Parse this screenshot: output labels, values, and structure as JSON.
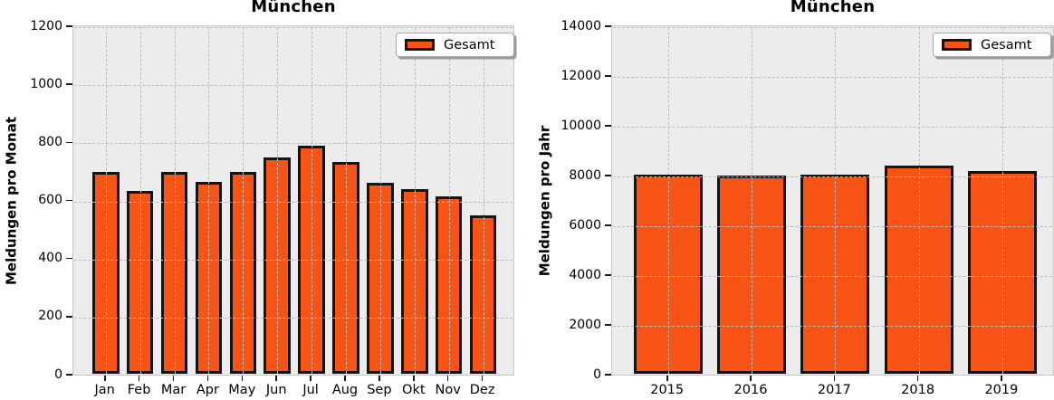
{
  "chart_data": [
    {
      "type": "bar",
      "title": "München",
      "ylabel": "Meldungen pro Monat",
      "legend_label": "Gesamt",
      "legend_position": "upper right",
      "grid": true,
      "categories": [
        "Jan",
        "Feb",
        "Mar",
        "Apr",
        "May",
        "Jun",
        "Jul",
        "Aug",
        "Sep",
        "Okt",
        "Nov",
        "Dez"
      ],
      "values": [
        695,
        630,
        695,
        660,
        695,
        745,
        787,
        730,
        658,
        636,
        610,
        545
      ],
      "ylim": [
        0,
        1200
      ],
      "ytick_step": 200
    },
    {
      "type": "bar",
      "title": "München",
      "ylabel": "Meldungen pro Jahr",
      "legend_label": "Gesamt",
      "legend_position": "upper right",
      "grid": true,
      "categories": [
        "2015",
        "2016",
        "2017",
        "2018",
        "2019"
      ],
      "values": [
        8000,
        7950,
        8000,
        8360,
        8150
      ],
      "ylim": [
        0,
        14000
      ],
      "ytick_step": 2000
    }
  ],
  "colors": {
    "bar_fill": "#F85416",
    "bar_edge": "#141414",
    "plot_bg": "#ECECEC",
    "grid": "#BDBDBD",
    "text": "#000000",
    "legend_bg": "#FDFDFD",
    "legend_border": "#A8A8A8",
    "legend_shadow": "#9B9B9B"
  }
}
